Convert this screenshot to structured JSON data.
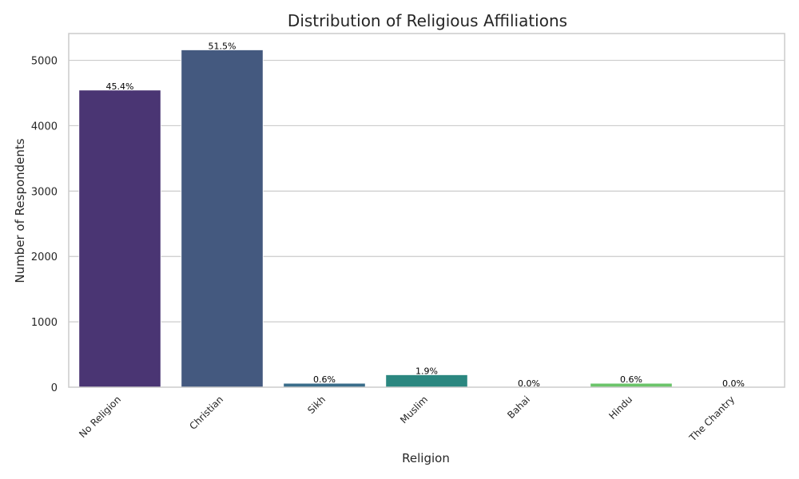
{
  "chart_data": {
    "type": "bar",
    "title": "Distribution of Religious Affiliations",
    "xlabel": "Religion",
    "ylabel": "Number of Respondents",
    "categories": [
      "No Religion",
      "Christian",
      "Sikh",
      "Muslim",
      "Bahai",
      "Hindu",
      "The Chantry"
    ],
    "values": [
      4545,
      5160,
      60,
      190,
      2,
      60,
      1
    ],
    "labels": [
      "45.4%",
      "51.5%",
      "0.6%",
      "1.9%",
      "0.0%",
      "0.6%",
      "0.0%"
    ],
    "colors": [
      "#4a3573",
      "#44597f",
      "#3a6d8a",
      "#2b8780",
      "#2fa878",
      "#6bc46a",
      "#a6d44c"
    ],
    "yticks": [
      0,
      1000,
      2000,
      3000,
      4000,
      5000
    ],
    "ylim": [
      0,
      5410
    ],
    "grid": true,
    "legend": "none"
  }
}
